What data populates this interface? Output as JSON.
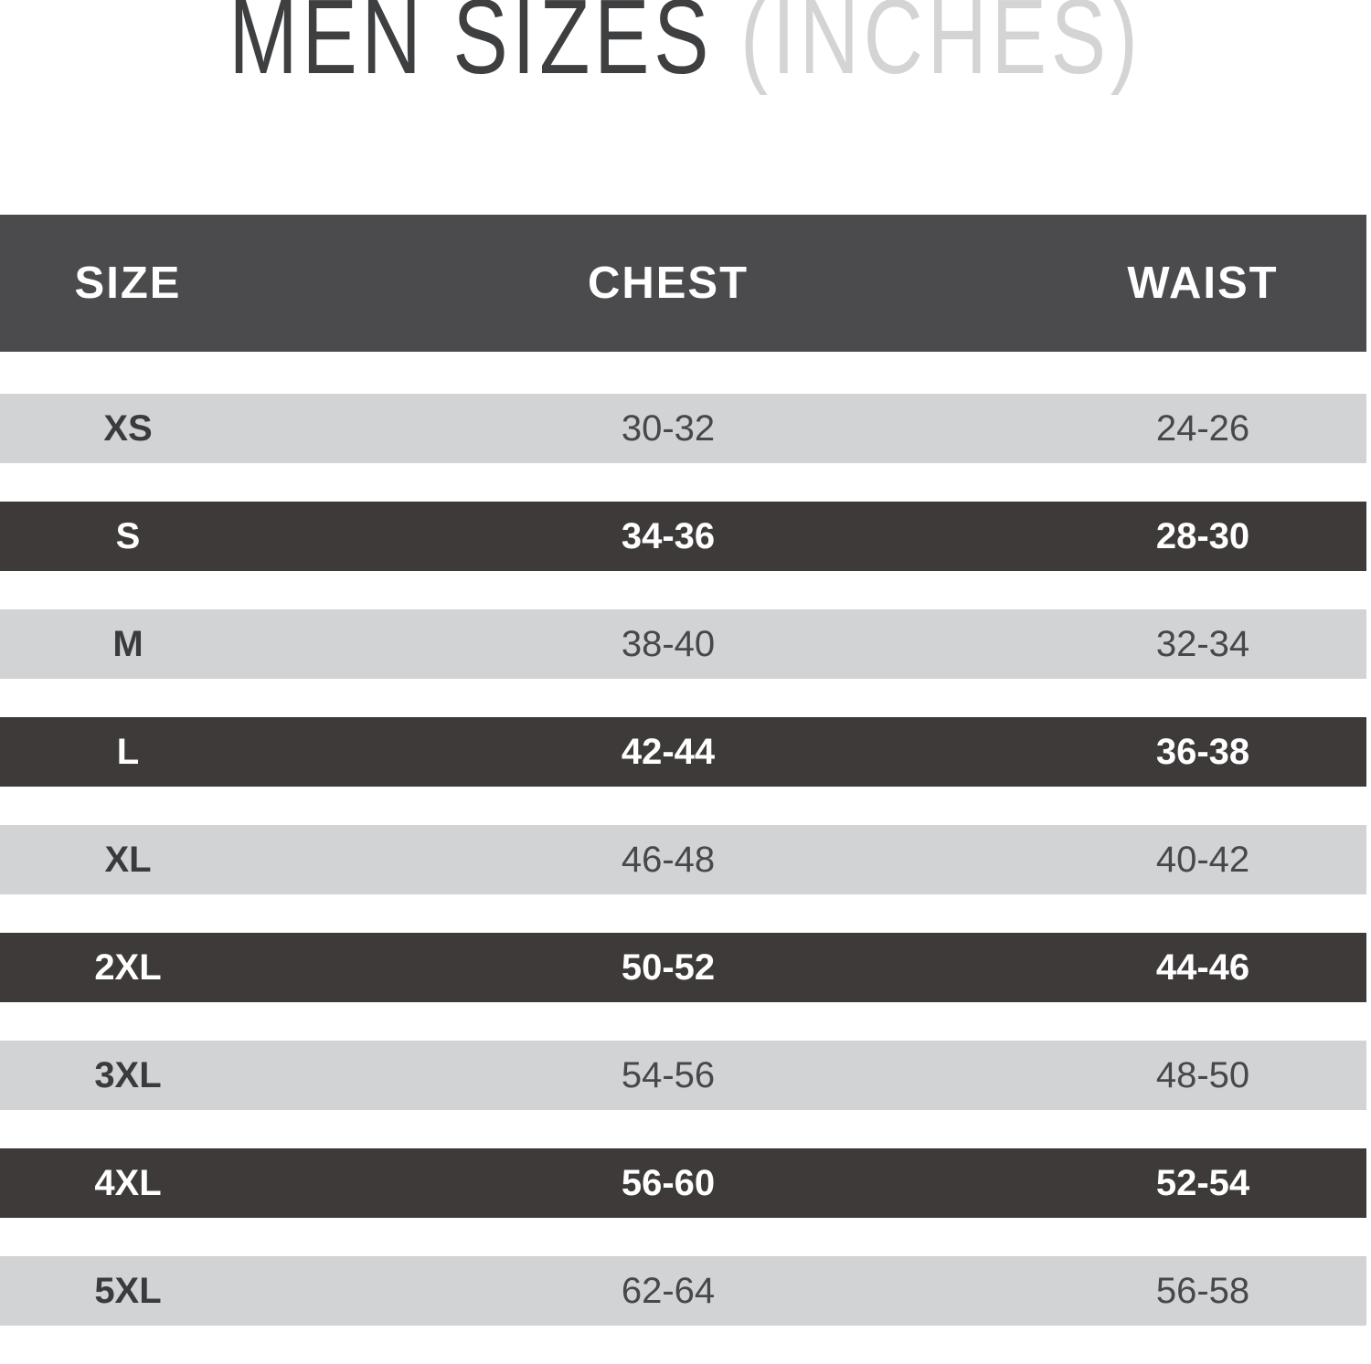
{
  "title": {
    "main": "MEN SIZES",
    "sub": " (INCHES)"
  },
  "table": {
    "headers": [
      "SIZE",
      "CHEST",
      "WAIST"
    ],
    "rows": [
      {
        "size": "XS",
        "chest": "30-32",
        "waist": "24-26",
        "variant": "light"
      },
      {
        "size": "S",
        "chest": "34-36",
        "waist": "28-30",
        "variant": "dark"
      },
      {
        "size": "M",
        "chest": "38-40",
        "waist": "32-34",
        "variant": "light"
      },
      {
        "size": "L",
        "chest": "42-44",
        "waist": "36-38",
        "variant": "dark"
      },
      {
        "size": "XL",
        "chest": "46-48",
        "waist": "40-42",
        "variant": "light"
      },
      {
        "size": "2XL",
        "chest": "50-52",
        "waist": "44-46",
        "variant": "dark"
      },
      {
        "size": "3XL",
        "chest": "54-56",
        "waist": "48-50",
        "variant": "light"
      },
      {
        "size": "4XL",
        "chest": "56-60",
        "waist": "52-54",
        "variant": "dark"
      },
      {
        "size": "5XL",
        "chest": "62-64",
        "waist": "56-58",
        "variant": "light"
      }
    ]
  },
  "colors": {
    "header_bg": "#4b4b4d",
    "header_text": "#ffffff",
    "dark_row_bg": "#3e3a39",
    "dark_row_text": "#ffffff",
    "light_row_bg": "#d2d3d5",
    "light_row_text": "#47484b",
    "light_row_label": "#3a3b3e",
    "title_main": "#3e3f41",
    "title_sub": "#d4d4d5"
  },
  "chart_data": {
    "type": "table",
    "title": "MEN SIZES (INCHES)",
    "columns": [
      "SIZE",
      "CHEST",
      "WAIST"
    ],
    "rows": [
      [
        "XS",
        "30-32",
        "24-26"
      ],
      [
        "S",
        "34-36",
        "28-30"
      ],
      [
        "M",
        "38-40",
        "32-34"
      ],
      [
        "L",
        "42-44",
        "36-38"
      ],
      [
        "XL",
        "46-48",
        "40-42"
      ],
      [
        "2XL",
        "50-52",
        "44-46"
      ],
      [
        "3XL",
        "54-56",
        "48-50"
      ],
      [
        "4XL",
        "56-60",
        "52-54"
      ],
      [
        "5XL",
        "62-64",
        "56-58"
      ]
    ],
    "layout": {
      "header_style": "dark bar, white bold text",
      "row_style": "alternating light gray / dark rows separated by white gaps",
      "alignment": "all columns centered"
    }
  }
}
